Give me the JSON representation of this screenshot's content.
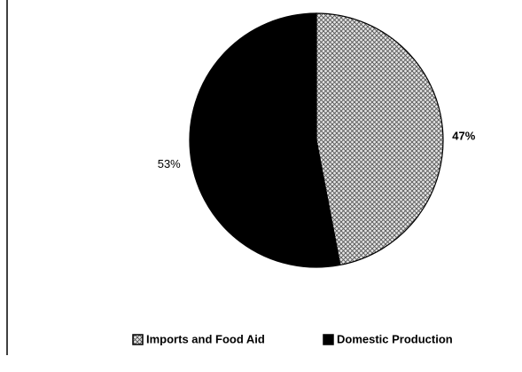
{
  "chart_data": {
    "type": "pie",
    "categories": [
      "Imports and Food Aid",
      "Domestic Production"
    ],
    "values": [
      47,
      53
    ],
    "value_labels": [
      "47%",
      "53%"
    ],
    "colors": [
      "url(#hatch)",
      "#000000"
    ]
  }
}
